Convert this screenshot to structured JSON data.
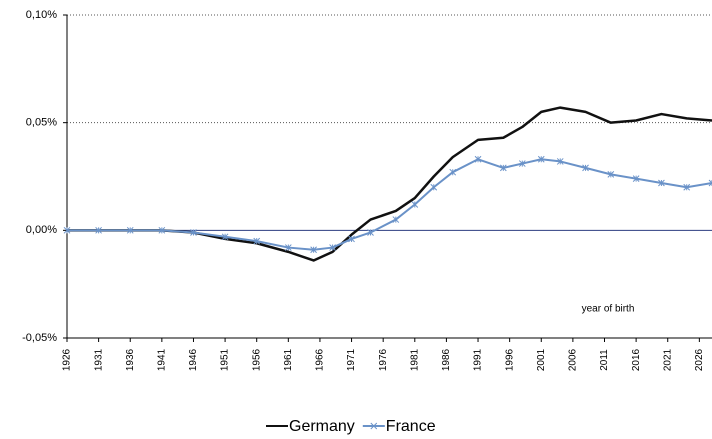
{
  "chart_data": {
    "type": "line",
    "annotation": "year of birth",
    "x": [
      1926,
      1931,
      1936,
      1941,
      1946,
      1951,
      1956,
      1961,
      1965,
      1968,
      1971,
      1974,
      1978,
      1981,
      1984,
      1987,
      1991,
      1995,
      1998,
      2001,
      2004,
      2008,
      2012,
      2016,
      2020,
      2024,
      2028
    ],
    "series": [
      {
        "name": "Germany",
        "color": "#111111",
        "values": [
          0,
          0,
          0,
          0,
          -0.001,
          -0.004,
          -0.006,
          -0.01,
          -0.014,
          -0.01,
          -0.002,
          0.005,
          0.009,
          0.015,
          0.025,
          0.034,
          0.042,
          0.043,
          0.048,
          0.055,
          0.057,
          0.055,
          0.05,
          0.051,
          0.054,
          0.052,
          0.051
        ]
      },
      {
        "name": "France",
        "color": "#6a92c8",
        "values": [
          0,
          0,
          0,
          0,
          -0.001,
          -0.003,
          -0.005,
          -0.008,
          -0.009,
          -0.008,
          -0.004,
          -0.001,
          0.005,
          0.012,
          0.02,
          0.027,
          0.033,
          0.029,
          0.031,
          0.033,
          0.032,
          0.029,
          0.026,
          0.024,
          0.022,
          0.02,
          0.022
        ]
      }
    ],
    "xlim": [
      1926,
      2028
    ],
    "xticks": [
      1926,
      1931,
      1936,
      1941,
      1946,
      1951,
      1956,
      1961,
      1966,
      1971,
      1976,
      1981,
      1986,
      1991,
      1996,
      2001,
      2006,
      2011,
      2016,
      2021,
      2026
    ],
    "ylim": [
      -0.05,
      0.1
    ],
    "yticks": [
      {
        "value": -0.05,
        "label": "-0,05%"
      },
      {
        "value": 0,
        "label": "0,00%"
      },
      {
        "value": 0.05,
        "label": "0,05%"
      },
      {
        "value": 0.1,
        "label": "0,10%"
      }
    ],
    "grid": true,
    "legend": "bottom"
  }
}
